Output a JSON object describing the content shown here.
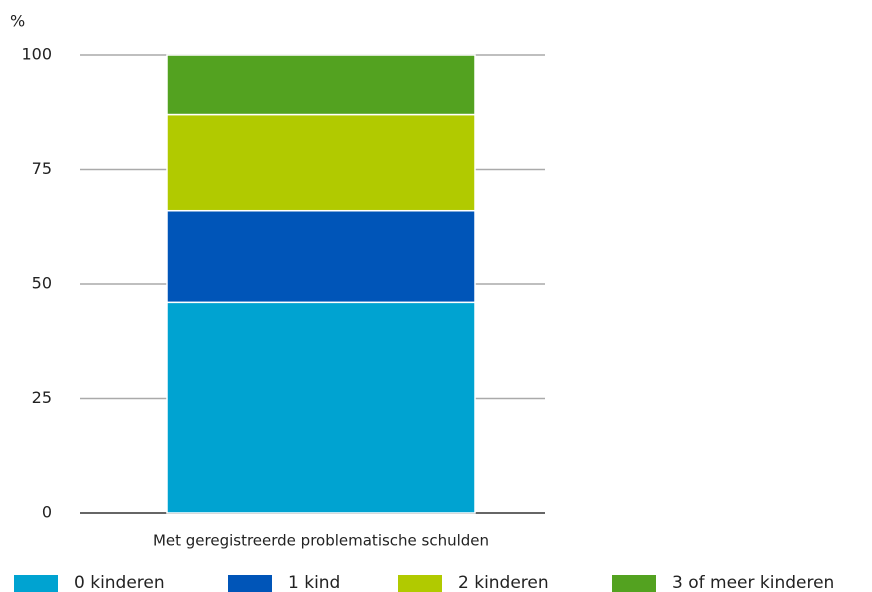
{
  "chart_data": {
    "type": "stacked_bar",
    "y_label": "%",
    "categories": [
      "Met geregistreerde problematische schulden"
    ],
    "series": [
      {
        "name": "0 kinderen",
        "color": "#00a3d1",
        "values": [
          46
        ]
      },
      {
        "name": "1 kind",
        "color": "#0055b8",
        "values": [
          20
        ]
      },
      {
        "name": "2 kinderen",
        "color": "#b1ca00",
        "values": [
          21
        ]
      },
      {
        "name": "3 of meer kinderen",
        "color": "#53a220",
        "values": [
          13
        ]
      }
    ],
    "ylim": [
      0,
      100
    ],
    "yticks": [
      0,
      25,
      50,
      75,
      100
    ],
    "grid": true,
    "legend": "bottom"
  }
}
